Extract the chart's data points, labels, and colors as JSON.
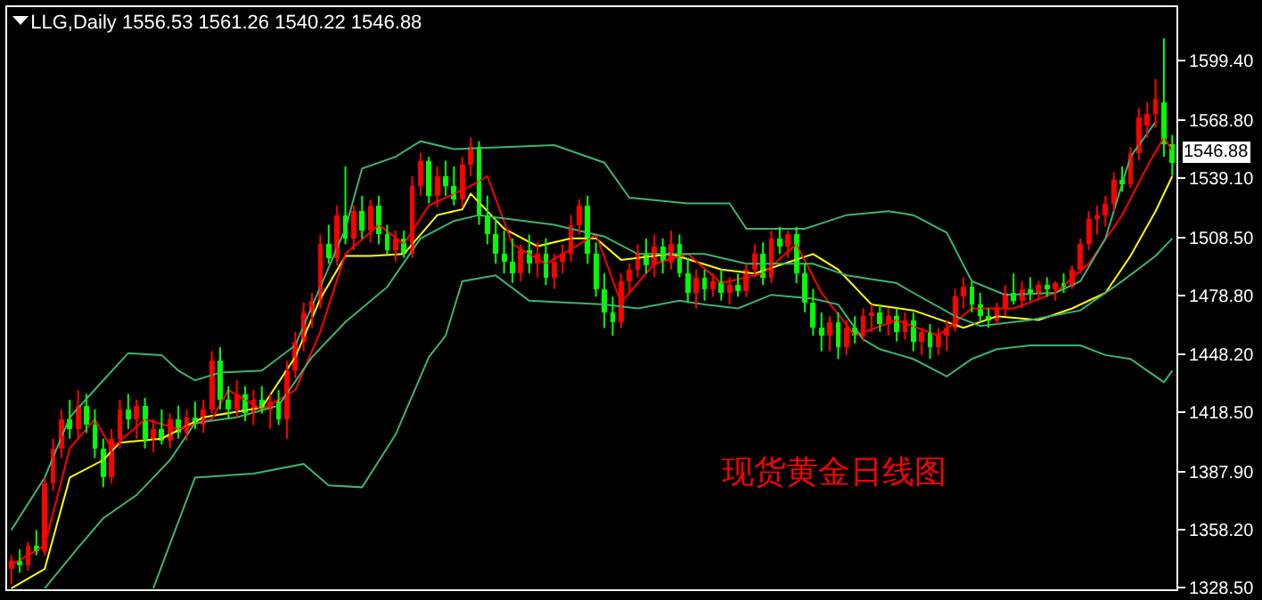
{
  "chart_data": {
    "type": "candlestick",
    "title": "LLG,Daily 1556.53 1561.26 1540.22 1546.88",
    "categories": [
      null,
      null,
      null,
      null,
      null,
      null,
      null,
      null,
      null,
      null,
      null,
      null,
      null,
      null,
      null,
      null,
      null,
      null,
      null,
      null,
      null,
      null,
      null,
      null,
      null,
      null,
      null,
      null,
      null,
      null,
      null,
      null,
      null,
      null,
      null,
      null,
      null,
      null,
      null,
      null,
      null,
      null,
      null,
      null,
      null,
      null,
      null,
      null,
      null,
      null,
      null,
      null,
      null,
      null,
      null,
      null,
      null,
      null,
      null,
      null,
      null,
      null,
      null,
      null,
      null,
      null,
      null,
      null,
      null,
      null,
      null,
      null,
      null,
      null,
      null,
      null,
      null,
      null,
      null,
      null,
      null,
      null,
      null,
      null,
      null,
      null,
      null,
      null,
      null,
      null,
      null,
      null,
      null,
      null,
      null,
      null,
      null,
      null,
      null,
      null,
      null,
      null,
      null,
      null,
      null,
      null,
      null,
      null,
      null,
      null,
      null,
      null,
      null,
      null,
      null,
      null,
      null,
      null,
      null,
      null,
      null,
      null,
      null,
      null,
      null,
      null,
      null,
      null,
      null,
      null,
      null,
      null,
      null,
      null,
      null,
      null,
      null,
      null,
      null,
      null
    ],
    "ohlc": [
      [
        1338,
        1345,
        1330,
        1342
      ],
      [
        1342,
        1348,
        1336,
        1340
      ],
      [
        1340,
        1352,
        1337,
        1350
      ],
      [
        1350,
        1358,
        1345,
        1347
      ],
      [
        1347,
        1385,
        1345,
        1382
      ],
      [
        1382,
        1405,
        1378,
        1400
      ],
      [
        1400,
        1420,
        1395,
        1415
      ],
      [
        1415,
        1425,
        1405,
        1410
      ],
      [
        1410,
        1430,
        1405,
        1422
      ],
      [
        1422,
        1428,
        1408,
        1412
      ],
      [
        1412,
        1420,
        1395,
        1400
      ],
      [
        1400,
        1405,
        1380,
        1385
      ],
      [
        1385,
        1410,
        1382,
        1405
      ],
      [
        1405,
        1425,
        1400,
        1420
      ],
      [
        1420,
        1428,
        1410,
        1415
      ],
      [
        1415,
        1425,
        1405,
        1422
      ],
      [
        1422,
        1426,
        1400,
        1405
      ],
      [
        1405,
        1415,
        1398,
        1410
      ],
      [
        1410,
        1420,
        1402,
        1404
      ],
      [
        1404,
        1418,
        1400,
        1415
      ],
      [
        1415,
        1422,
        1405,
        1408
      ],
      [
        1408,
        1420,
        1404,
        1416
      ],
      [
        1416,
        1424,
        1410,
        1412
      ],
      [
        1412,
        1425,
        1408,
        1420
      ],
      [
        1420,
        1450,
        1418,
        1445
      ],
      [
        1445,
        1452,
        1420,
        1425
      ],
      [
        1425,
        1432,
        1415,
        1420
      ],
      [
        1420,
        1435,
        1416,
        1428
      ],
      [
        1428,
        1432,
        1414,
        1418
      ],
      [
        1418,
        1430,
        1412,
        1425
      ],
      [
        1425,
        1432,
        1418,
        1420
      ],
      [
        1420,
        1428,
        1410,
        1424
      ],
      [
        1424,
        1430,
        1412,
        1415
      ],
      [
        1415,
        1445,
        1405,
        1440
      ],
      [
        1440,
        1460,
        1436,
        1455
      ],
      [
        1455,
        1475,
        1450,
        1470
      ],
      [
        1470,
        1480,
        1462,
        1476
      ],
      [
        1476,
        1510,
        1472,
        1505
      ],
      [
        1505,
        1515,
        1495,
        1498
      ],
      [
        1498,
        1525,
        1494,
        1520
      ],
      [
        1520,
        1545,
        1505,
        1508
      ],
      [
        1508,
        1525,
        1502,
        1522
      ],
      [
        1522,
        1530,
        1508,
        1512
      ],
      [
        1512,
        1528,
        1506,
        1525
      ],
      [
        1525,
        1530,
        1505,
        1510
      ],
      [
        1510,
        1515,
        1500,
        1502
      ],
      [
        1502,
        1512,
        1496,
        1508
      ],
      [
        1508,
        1512,
        1498,
        1500
      ],
      [
        1500,
        1540,
        1498,
        1535
      ],
      [
        1535,
        1552,
        1530,
        1548
      ],
      [
        1548,
        1550,
        1526,
        1530
      ],
      [
        1530,
        1545,
        1524,
        1540
      ],
      [
        1540,
        1548,
        1530,
        1535
      ],
      [
        1535,
        1545,
        1525,
        1528
      ],
      [
        1528,
        1550,
        1524,
        1546
      ],
      [
        1546,
        1560,
        1540,
        1555
      ],
      [
        1555,
        1558,
        1515,
        1520
      ],
      [
        1520,
        1530,
        1505,
        1510
      ],
      [
        1510,
        1518,
        1495,
        1500
      ],
      [
        1500,
        1512,
        1490,
        1496
      ],
      [
        1496,
        1508,
        1485,
        1490
      ],
      [
        1490,
        1505,
        1486,
        1502
      ],
      [
        1502,
        1510,
        1490,
        1495
      ],
      [
        1495,
        1506,
        1488,
        1500
      ],
      [
        1500,
        1508,
        1484,
        1488
      ],
      [
        1488,
        1500,
        1482,
        1496
      ],
      [
        1496,
        1505,
        1490,
        1500
      ],
      [
        1500,
        1520,
        1496,
        1515
      ],
      [
        1515,
        1528,
        1510,
        1525
      ],
      [
        1525,
        1530,
        1495,
        1500
      ],
      [
        1500,
        1506,
        1478,
        1482
      ],
      [
        1482,
        1490,
        1462,
        1470
      ],
      [
        1470,
        1478,
        1458,
        1465
      ],
      [
        1465,
        1490,
        1462,
        1486
      ],
      [
        1486,
        1495,
        1480,
        1492
      ],
      [
        1492,
        1505,
        1488,
        1500
      ],
      [
        1500,
        1508,
        1490,
        1494
      ],
      [
        1494,
        1510,
        1488,
        1504
      ],
      [
        1504,
        1508,
        1490,
        1496
      ],
      [
        1496,
        1512,
        1492,
        1505
      ],
      [
        1505,
        1510,
        1488,
        1490
      ],
      [
        1490,
        1498,
        1475,
        1480
      ],
      [
        1480,
        1492,
        1472,
        1488
      ],
      [
        1488,
        1492,
        1476,
        1482
      ],
      [
        1482,
        1490,
        1478,
        1486
      ],
      [
        1486,
        1492,
        1476,
        1480
      ],
      [
        1480,
        1488,
        1474,
        1484
      ],
      [
        1484,
        1490,
        1478,
        1481
      ],
      [
        1481,
        1495,
        1478,
        1492
      ],
      [
        1492,
        1505,
        1488,
        1500
      ],
      [
        1500,
        1506,
        1484,
        1488
      ],
      [
        1488,
        1512,
        1485,
        1508
      ],
      [
        1508,
        1514,
        1500,
        1504
      ],
      [
        1504,
        1512,
        1498,
        1510
      ],
      [
        1510,
        1514,
        1485,
        1490
      ],
      [
        1490,
        1495,
        1470,
        1475
      ],
      [
        1475,
        1482,
        1458,
        1462
      ],
      [
        1462,
        1470,
        1450,
        1458
      ],
      [
        1458,
        1468,
        1450,
        1465
      ],
      [
        1465,
        1470,
        1446,
        1452
      ],
      [
        1452,
        1466,
        1448,
        1462
      ],
      [
        1462,
        1468,
        1454,
        1458
      ],
      [
        1458,
        1472,
        1455,
        1468
      ],
      [
        1468,
        1474,
        1460,
        1470
      ],
      [
        1470,
        1474,
        1460,
        1464
      ],
      [
        1464,
        1472,
        1458,
        1468
      ],
      [
        1468,
        1472,
        1455,
        1460
      ],
      [
        1460,
        1470,
        1456,
        1466
      ],
      [
        1466,
        1470,
        1450,
        1455
      ],
      [
        1455,
        1462,
        1448,
        1460
      ],
      [
        1460,
        1464,
        1446,
        1452
      ],
      [
        1452,
        1462,
        1448,
        1458
      ],
      [
        1458,
        1466,
        1450,
        1462
      ],
      [
        1462,
        1482,
        1460,
        1478
      ],
      [
        1478,
        1488,
        1472,
        1483
      ],
      [
        1483,
        1486,
        1470,
        1474
      ],
      [
        1474,
        1480,
        1465,
        1468
      ],
      [
        1468,
        1472,
        1462,
        1466
      ],
      [
        1466,
        1475,
        1464,
        1472
      ],
      [
        1472,
        1484,
        1468,
        1480
      ],
      [
        1480,
        1490,
        1474,
        1476
      ],
      [
        1476,
        1486,
        1472,
        1482
      ],
      [
        1482,
        1488,
        1476,
        1480
      ],
      [
        1480,
        1486,
        1476,
        1484
      ],
      [
        1484,
        1488,
        1478,
        1482
      ],
      [
        1482,
        1486,
        1476,
        1485
      ],
      [
        1485,
        1490,
        1480,
        1483
      ],
      [
        1483,
        1494,
        1482,
        1492
      ],
      [
        1492,
        1508,
        1490,
        1505
      ],
      [
        1505,
        1522,
        1502,
        1518
      ],
      [
        1518,
        1525,
        1510,
        1520
      ],
      [
        1520,
        1530,
        1514,
        1526
      ],
      [
        1526,
        1542,
        1522,
        1538
      ],
      [
        1538,
        1545,
        1532,
        1536
      ],
      [
        1536,
        1555,
        1534,
        1552
      ],
      [
        1552,
        1575,
        1548,
        1570
      ],
      [
        1566,
        1578,
        1560,
        1572
      ],
      [
        1572,
        1590,
        1565,
        1580
      ],
      [
        1578,
        1611,
        1550,
        1556.53
      ],
      [
        1556.53,
        1561.26,
        1540.22,
        1546.88
      ]
    ],
    "colors": [
      "#ff0000",
      "#00ff00",
      "#ff0000",
      "#00ff00",
      "#ff0000",
      "#ff0000",
      "#ff0000",
      "#00ff00",
      "#ff0000",
      "#00ff00",
      "#00ff00",
      "#00ff00",
      "#ff0000",
      "#ff0000",
      "#00ff00",
      "#ff0000",
      "#00ff00",
      "#ff0000",
      "#00ff00",
      "#ff0000",
      "#00ff00",
      "#ff0000",
      "#00ff00",
      "#ff0000",
      "#ff0000",
      "#00ff00",
      "#00ff00",
      "#ff0000",
      "#00ff00",
      "#ff0000",
      "#00ff00",
      "#ff0000",
      "#00ff00",
      "#ff0000",
      "#ff0000",
      "#ff0000",
      "#ff0000",
      "#ff0000",
      "#00ff00",
      "#ff0000",
      "#00ff00",
      "#ff0000",
      "#00ff00",
      "#ff0000",
      "#00ff00",
      "#00ff00",
      "#ff0000",
      "#00ff00",
      "#ff0000",
      "#ff0000",
      "#00ff00",
      "#ff0000",
      "#00ff00",
      "#00ff00",
      "#ff0000",
      "#ff0000",
      "#00ff00",
      "#00ff00",
      "#00ff00",
      "#00ff00",
      "#00ff00",
      "#ff0000",
      "#00ff00",
      "#ff0000",
      "#00ff00",
      "#ff0000",
      "#ff0000",
      "#ff0000",
      "#ff0000",
      "#00ff00",
      "#00ff00",
      "#00ff00",
      "#00ff00",
      "#ff0000",
      "#ff0000",
      "#ff0000",
      "#00ff00",
      "#ff0000",
      "#00ff00",
      "#ff0000",
      "#00ff00",
      "#00ff00",
      "#ff0000",
      "#00ff00",
      "#ff0000",
      "#00ff00",
      "#ff0000",
      "#00ff00",
      "#ff0000",
      "#ff0000",
      "#00ff00",
      "#ff0000",
      "#00ff00",
      "#ff0000",
      "#00ff00",
      "#00ff00",
      "#00ff00",
      "#00ff00",
      "#ff0000",
      "#00ff00",
      "#ff0000",
      "#00ff00",
      "#ff0000",
      "#ff0000",
      "#00ff00",
      "#ff0000",
      "#00ff00",
      "#ff0000",
      "#00ff00",
      "#ff0000",
      "#00ff00",
      "#ff0000",
      "#ff0000",
      "#ff0000",
      "#ff0000",
      "#00ff00",
      "#00ff00",
      "#00ff00",
      "#ff0000",
      "#ff0000",
      "#00ff00",
      "#ff0000",
      "#00ff00",
      "#ff0000",
      "#00ff00",
      "#ff0000",
      "#00ff00",
      "#ff0000",
      "#ff0000",
      "#ff0000",
      "#ff0000",
      "#ff0000",
      "#ff0000",
      "#00ff00",
      "#ff0000",
      "#ff0000",
      "#ff0000",
      "#ff0000",
      "#00ff00",
      "#00ff00"
    ],
    "series": [
      {
        "type": "line",
        "color": "#ffff00",
        "values": [
          1328,
          null,
          null,
          null,
          1338,
          null,
          null,
          1385,
          null,
          null,
          null,
          1394,
          null,
          1403,
          null,
          null,
          null,
          null,
          1405,
          null,
          null,
          null,
          null,
          1416,
          null,
          null,
          null,
          null,
          null,
          null,
          1421,
          null,
          null,
          null,
          1447,
          null,
          null,
          1477,
          null,
          null,
          1499,
          null,
          null,
          1499,
          null,
          null,
          null,
          1500,
          null,
          null,
          null,
          1520,
          null,
          null,
          1523,
          1531,
          null,
          null,
          null,
          1513,
          null,
          null,
          null,
          1504,
          null,
          null,
          null,
          1508,
          null,
          null,
          1508,
          null,
          null,
          1497,
          null,
          null,
          null,
          null,
          null,
          1500,
          null,
          null,
          null,
          null,
          null,
          1492,
          null,
          null,
          null,
          1490,
          null,
          null,
          null,
          null,
          null,
          null,
          1500,
          null,
          null,
          1492,
          null,
          null,
          null,
          1474,
          null,
          null,
          null,
          null,
          1471,
          null,
          null,
          null,
          null,
          null,
          1462,
          null,
          null,
          null,
          1468,
          null,
          null,
          null,
          null,
          1466,
          null,
          null,
          null,
          1472,
          null,
          null,
          null,
          1480,
          null,
          null,
          1499,
          null,
          null,
          1522,
          null,
          1540
        ]
      },
      {
        "type": "line",
        "color": "#ff0000",
        "values": [
          1340,
          null,
          null,
          null,
          1350,
          null,
          null,
          1400,
          null,
          null,
          1415,
          null,
          1400,
          null,
          null,
          null,
          1415,
          null,
          null,
          null,
          1410,
          null,
          null,
          null,
          1415,
          null,
          1430,
          null,
          null,
          null,
          1420,
          null,
          null,
          null,
          1430,
          null,
          null,
          1460,
          null,
          null,
          1500,
          null,
          null,
          null,
          1515,
          null,
          null,
          1505,
          null,
          null,
          1525,
          null,
          null,
          null,
          null,
          1535,
          null,
          1540,
          null,
          null,
          1505,
          null,
          null,
          null,
          1495,
          null,
          null,
          null,
          1505,
          null,
          1510,
          null,
          null,
          1475,
          null,
          null,
          null,
          1495,
          null,
          null,
          null,
          1500,
          null,
          null,
          null,
          1485,
          null,
          null,
          null,
          null,
          1490,
          null,
          null,
          null,
          1505,
          null,
          null,
          1480,
          null,
          null,
          null,
          1458,
          null,
          null,
          null,
          null,
          1466,
          null,
          null,
          null,
          null,
          1458,
          null,
          null,
          null,
          1472,
          null,
          null,
          null,
          null,
          1472,
          null,
          null,
          null,
          null,
          1480,
          null,
          null,
          null,
          1495,
          null,
          null,
          null,
          1520,
          null,
          null,
          1545,
          null,
          1560,
          1553
        ]
      },
      {
        "type": "line",
        "color": "#3cb371",
        "values": [
          1358,
          null,
          null,
          null,
          1385,
          null,
          null,
          1416,
          null,
          null,
          null,
          1435,
          null,
          null,
          1449,
          null,
          null,
          null,
          1448,
          null,
          1440,
          null,
          1435,
          null,
          null,
          1439,
          null,
          null,
          null,
          null,
          1440,
          null,
          null,
          null,
          1453,
          null,
          null,
          1483,
          null,
          null,
          1513,
          null,
          1544,
          null,
          null,
          null,
          1550,
          null,
          null,
          1558,
          null,
          null,
          null,
          1554,
          null,
          null,
          null,
          null,
          null,
          1555,
          null,
          null,
          null,
          null,
          null,
          1556,
          null,
          null,
          null,
          null,
          null,
          1547,
          null,
          null,
          1529,
          null,
          null,
          null,
          null,
          null,
          null,
          1526,
          null,
          null,
          null,
          null,
          1526,
          null,
          1513,
          null,
          null,
          null,
          null,
          null,
          null,
          1513,
          null,
          null,
          null,
          null,
          1520,
          null,
          null,
          null,
          null,
          1522,
          null,
          null,
          1520,
          null,
          null,
          null,
          1511,
          null,
          null,
          1486,
          null,
          null,
          null,
          1479,
          null,
          null,
          null,
          null,
          null,
          1480,
          null,
          null,
          1486,
          null,
          null,
          1508,
          null,
          null,
          1550,
          null,
          null,
          1568,
          null,
          null
        ]
      },
      {
        "type": "line",
        "color": "#3cb371",
        "values": [
          null,
          null,
          null,
          null,
          1328,
          null,
          null,
          null,
          1349,
          null,
          null,
          1364,
          null,
          null,
          null,
          1376,
          null,
          null,
          null,
          1394,
          null,
          null,
          1413,
          null,
          null,
          null,
          null,
          1416,
          null,
          null,
          null,
          null,
          1422,
          null,
          null,
          null,
          1447,
          null,
          null,
          null,
          1465,
          null,
          null,
          null,
          null,
          1483,
          null,
          null,
          null,
          1508,
          null,
          null,
          null,
          1517,
          null,
          null,
          1520,
          null,
          null,
          null,
          null,
          null,
          null,
          null,
          null,
          1515,
          null,
          null,
          null,
          null,
          null,
          1509,
          null,
          null,
          null,
          1500,
          null,
          null,
          null,
          null,
          null,
          null,
          null,
          1500,
          null,
          null,
          null,
          null,
          1495,
          null,
          null,
          null,
          null,
          null,
          null,
          null,
          1495,
          null,
          null,
          null,
          1489,
          null,
          null,
          null,
          null,
          null,
          1485,
          null,
          1480,
          null,
          null,
          null,
          null,
          1468,
          null,
          null,
          1463,
          null,
          null,
          null,
          null,
          null,
          1466,
          null,
          null,
          null,
          null,
          null,
          1471,
          null,
          null,
          null,
          null,
          1486,
          null,
          null,
          null,
          1499,
          null,
          1508
        ]
      },
      {
        "type": "line",
        "color": "#3cb371",
        "values": [
          null,
          null,
          null,
          null,
          null,
          null,
          null,
          null,
          null,
          null,
          null,
          null,
          null,
          null,
          null,
          null,
          null,
          1328,
          null,
          null,
          null,
          null,
          1385,
          null,
          null,
          null,
          null,
          null,
          null,
          1387,
          null,
          null,
          null,
          null,
          null,
          1392,
          null,
          null,
          1381,
          null,
          null,
          null,
          1380,
          null,
          null,
          null,
          1407,
          null,
          null,
          null,
          1447,
          null,
          1458,
          null,
          1486,
          null,
          null,
          null,
          1489,
          null,
          null,
          null,
          1476,
          null,
          null,
          null,
          null,
          null,
          null,
          null,
          null,
          1474,
          null,
          null,
          null,
          1472,
          null,
          null,
          null,
          null,
          1476,
          null,
          null,
          1474,
          null,
          null,
          null,
          1472,
          null,
          null,
          null,
          1479,
          null,
          null,
          null,
          null,
          1477,
          null,
          null,
          1474,
          null,
          null,
          1456,
          null,
          1451,
          null,
          null,
          null,
          1446,
          null,
          null,
          null,
          1437,
          null,
          null,
          1446,
          null,
          null,
          1451,
          null,
          null,
          null,
          1453,
          null,
          null,
          null,
          null,
          null,
          1453,
          null,
          null,
          1448,
          null,
          null,
          1446,
          null,
          null,
          1437,
          1434,
          1440
        ]
      }
    ],
    "annotations": [
      "现货黄金日线图",
      "1546.88"
    ],
    "ylim": [
      1327.5,
      1627
    ],
    "yticks": [
      {
        "value": 1328.5,
        "label": "1328.50"
      },
      {
        "value": 1358.2,
        "label": "1358.20"
      },
      {
        "value": 1387.9,
        "label": "1387.90"
      },
      {
        "value": 1418.5,
        "label": "1418.50"
      },
      {
        "value": 1448.2,
        "label": "1448.20"
      },
      {
        "value": 1478.8,
        "label": "1478.80"
      },
      {
        "value": 1508.5,
        "label": "1508.50"
      },
      {
        "value": 1539.1,
        "label": "1539.10"
      },
      {
        "value": 1568.8,
        "label": "1568.80"
      },
      {
        "value": 1599.4,
        "label": "1599.40"
      }
    ],
    "tick_labels": "y",
    "grid": false
  }
}
